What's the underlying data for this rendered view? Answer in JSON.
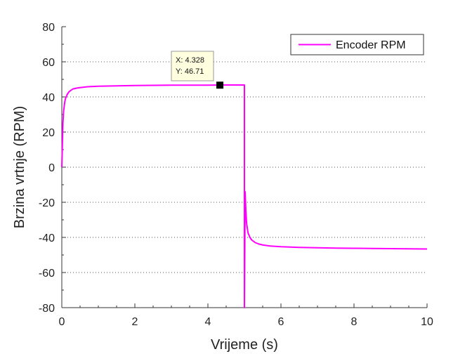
{
  "chart_data": {
    "type": "line",
    "xlabel": "Vrijeme (s)",
    "ylabel": "Brzina vrtnje (RPM)",
    "xlim": [
      0,
      10
    ],
    "ylim": [
      -80,
      80
    ],
    "x_ticks": [
      0,
      2,
      4,
      6,
      8,
      10
    ],
    "y_ticks": [
      80,
      60,
      40,
      20,
      0,
      -20,
      -40,
      -60,
      -80
    ],
    "grid": "horizontal-dotted",
    "legend_placement": "top-right",
    "series": [
      {
        "name": "Encoder RPM",
        "color": "#ff00ff",
        "x": [
          0,
          0.01,
          0.03,
          0.05,
          0.08,
          0.1,
          0.15,
          0.2,
          0.3,
          0.4,
          0.5,
          0.7,
          1.0,
          1.5,
          2.0,
          2.5,
          3.0,
          3.5,
          4.0,
          4.5,
          5.0,
          5.0,
          5.02,
          5.04,
          5.06,
          5.08,
          5.1,
          5.15,
          5.2,
          5.3,
          5.4,
          5.5,
          5.7,
          6.0,
          6.5,
          7.0,
          7.5,
          8.0,
          8.5,
          9.0,
          9.5,
          10.0
        ],
        "y": [
          0,
          8,
          25,
          32,
          37,
          39,
          41.5,
          43,
          44.5,
          45,
          45.3,
          45.8,
          46.1,
          46.3,
          46.5,
          46.6,
          46.7,
          46.7,
          46.7,
          46.8,
          46.8,
          -80,
          -14,
          -25,
          -32,
          -35,
          -37.5,
          -40,
          -41.5,
          -43,
          -43.8,
          -44.3,
          -44.9,
          -45.3,
          -45.7,
          -45.9,
          -46.1,
          -46.2,
          -46.3,
          -46.4,
          -46.5,
          -46.6
        ]
      }
    ],
    "datatip": {
      "x_label": "X: 4.328",
      "y_label": "Y: 46.71",
      "x": 4.328,
      "y": 46.71
    }
  }
}
